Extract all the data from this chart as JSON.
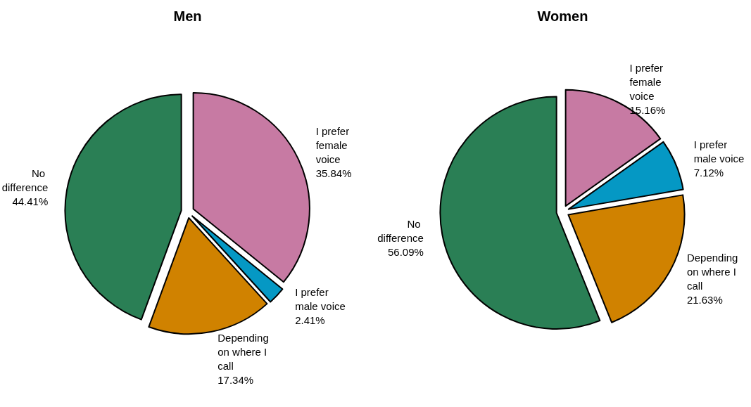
{
  "chart_data": [
    {
      "type": "pie",
      "title": "Men",
      "categories": [
        "I prefer female voice",
        "I prefer male voice",
        "Depending on where I call",
        "No difference"
      ],
      "values": [
        35.84,
        2.41,
        17.34,
        44.41
      ],
      "value_labels": [
        "35.84%",
        "2.41%",
        "17.34%",
        "44.41%"
      ],
      "colors": [
        "#c77aa3",
        "#0598c4",
        "#d08200",
        "#2a7f55"
      ]
    },
    {
      "type": "pie",
      "title": "Women",
      "categories": [
        "I prefer female voice",
        "I prefer male voice",
        "Depending on where I call",
        "No difference"
      ],
      "values": [
        15.16,
        7.12,
        21.63,
        56.09
      ],
      "value_labels": [
        "15.16%",
        "7.12%",
        "21.63%",
        "56.09%"
      ],
      "colors": [
        "#c77aa3",
        "#0598c4",
        "#d08200",
        "#2a7f55"
      ]
    }
  ]
}
